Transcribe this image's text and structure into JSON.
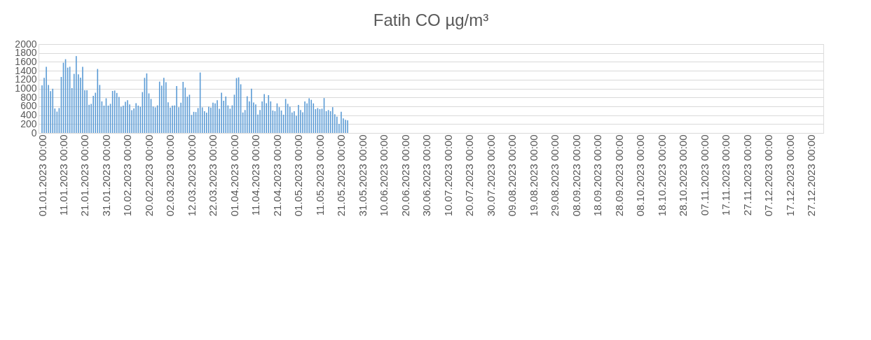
{
  "chart_data": {
    "type": "bar",
    "title": "Fatih CO µg/m³",
    "x": [
      "2023-01-01",
      "2023-01-02",
      "2023-01-03",
      "2023-01-04",
      "2023-01-05",
      "2023-01-06",
      "2023-01-07",
      "2023-01-08",
      "2023-01-09",
      "2023-01-10",
      "2023-01-11",
      "2023-01-12",
      "2023-01-13",
      "2023-01-14",
      "2023-01-15",
      "2023-01-16",
      "2023-01-17",
      "2023-01-18",
      "2023-01-19",
      "2023-01-20",
      "2023-01-21",
      "2023-01-22",
      "2023-01-23",
      "2023-01-24",
      "2023-01-25",
      "2023-01-26",
      "2023-01-27",
      "2023-01-28",
      "2023-01-29",
      "2023-01-30",
      "2023-01-31",
      "2023-02-01",
      "2023-02-02",
      "2023-02-03",
      "2023-02-04",
      "2023-02-05",
      "2023-02-06",
      "2023-02-07",
      "2023-02-08",
      "2023-02-09",
      "2023-02-10",
      "2023-02-11",
      "2023-02-12",
      "2023-02-13",
      "2023-02-14",
      "2023-02-15",
      "2023-02-16",
      "2023-02-17",
      "2023-02-18",
      "2023-02-19",
      "2023-02-20",
      "2023-02-21",
      "2023-02-22",
      "2023-02-23",
      "2023-02-24",
      "2023-02-25",
      "2023-02-26",
      "2023-02-27",
      "2023-02-28",
      "2023-03-01",
      "2023-03-02",
      "2023-03-03",
      "2023-03-04",
      "2023-03-05",
      "2023-03-06",
      "2023-03-07",
      "2023-03-08",
      "2023-03-09",
      "2023-03-10",
      "2023-03-11",
      "2023-03-12",
      "2023-03-13",
      "2023-03-14",
      "2023-03-15",
      "2023-03-16",
      "2023-03-17",
      "2023-03-18",
      "2023-03-19",
      "2023-03-20",
      "2023-03-21",
      "2023-03-22",
      "2023-03-23",
      "2023-03-24",
      "2023-03-25",
      "2023-03-26",
      "2023-03-27",
      "2023-03-28",
      "2023-03-29",
      "2023-03-30",
      "2023-03-31",
      "2023-04-01",
      "2023-04-02",
      "2023-04-03",
      "2023-04-04",
      "2023-04-05",
      "2023-04-06",
      "2023-04-07",
      "2023-04-08",
      "2023-04-09",
      "2023-04-10",
      "2023-04-11",
      "2023-04-12",
      "2023-04-13",
      "2023-04-14",
      "2023-04-15",
      "2023-04-16",
      "2023-04-17",
      "2023-04-18",
      "2023-04-19",
      "2023-04-20",
      "2023-04-21",
      "2023-04-22",
      "2023-04-23",
      "2023-04-24",
      "2023-04-25",
      "2023-04-26",
      "2023-04-27",
      "2023-04-28",
      "2023-04-29",
      "2023-04-30",
      "2023-05-01",
      "2023-05-02",
      "2023-05-03",
      "2023-05-04",
      "2023-05-05",
      "2023-05-06",
      "2023-05-07",
      "2023-05-08",
      "2023-05-09",
      "2023-05-10",
      "2023-05-11",
      "2023-05-12",
      "2023-05-13",
      "2023-05-14",
      "2023-05-15",
      "2023-05-16",
      "2023-05-17",
      "2023-05-18",
      "2023-05-19",
      "2023-05-20",
      "2023-05-21",
      "2023-05-22",
      "2023-05-23",
      "2023-05-24"
    ],
    "values": [
      1070,
      1240,
      1490,
      1080,
      940,
      995,
      550,
      480,
      560,
      1260,
      1580,
      1660,
      1470,
      1490,
      1010,
      1330,
      1730,
      1320,
      1245,
      1490,
      960,
      960,
      635,
      655,
      835,
      905,
      1440,
      1080,
      710,
      615,
      780,
      615,
      655,
      945,
      955,
      900,
      810,
      590,
      615,
      700,
      735,
      640,
      510,
      550,
      670,
      615,
      590,
      920,
      1240,
      1340,
      890,
      765,
      595,
      575,
      620,
      1155,
      1065,
      1240,
      1140,
      690,
      570,
      615,
      620,
      1055,
      580,
      680,
      1150,
      1020,
      815,
      860,
      405,
      475,
      470,
      560,
      1360,
      575,
      490,
      455,
      590,
      570,
      680,
      665,
      735,
      545,
      905,
      725,
      820,
      620,
      545,
      620,
      860,
      1235,
      1250,
      1095,
      460,
      515,
      825,
      710,
      995,
      685,
      640,
      415,
      515,
      710,
      875,
      670,
      850,
      710,
      505,
      490,
      665,
      580,
      505,
      410,
      765,
      655,
      590,
      460,
      490,
      385,
      630,
      515,
      465,
      710,
      665,
      780,
      745,
      665,
      535,
      560,
      535,
      545,
      785,
      490,
      515,
      490,
      580,
      420,
      365,
      205,
      475,
      325,
      295,
      285
    ],
    "color": "#5b9bd5",
    "xlim": [
      "2023-01-01",
      "2023-12-31"
    ],
    "xticks": [
      {
        "value": "2023-01-01",
        "label": "01.01.2023 00:00"
      },
      {
        "value": "2023-01-11",
        "label": "11.01.2023 00:00"
      },
      {
        "value": "2023-01-21",
        "label": "21.01.2023 00:00"
      },
      {
        "value": "2023-01-31",
        "label": "31.01.2023 00:00"
      },
      {
        "value": "2023-02-10",
        "label": "10.02.2023 00:00"
      },
      {
        "value": "2023-02-20",
        "label": "20.02.2023 00:00"
      },
      {
        "value": "2023-03-02",
        "label": "02.03.2023 00:00"
      },
      {
        "value": "2023-03-12",
        "label": "12.03.2023 00:00"
      },
      {
        "value": "2023-03-22",
        "label": "22.03.2023 00:00"
      },
      {
        "value": "2023-04-01",
        "label": "01.04.2023 00:00"
      },
      {
        "value": "2023-04-11",
        "label": "11.04.2023 00:00"
      },
      {
        "value": "2023-04-21",
        "label": "21.04.2023 00:00"
      },
      {
        "value": "2023-05-01",
        "label": "01.05.2023 00:00"
      },
      {
        "value": "2023-05-11",
        "label": "11.05.2023 00:00"
      },
      {
        "value": "2023-05-21",
        "label": "21.05.2023 00:00"
      },
      {
        "value": "2023-05-31",
        "label": "31.05.2023 00:00"
      },
      {
        "value": "2023-06-10",
        "label": "10.06.2023 00:00"
      },
      {
        "value": "2023-06-20",
        "label": "20.06.2023 00:00"
      },
      {
        "value": "2023-06-30",
        "label": "30.06.2023 00:00"
      },
      {
        "value": "2023-07-10",
        "label": "10.07.2023 00:00"
      },
      {
        "value": "2023-07-20",
        "label": "20.07.2023 00:00"
      },
      {
        "value": "2023-07-30",
        "label": "30.07.2023 00:00"
      },
      {
        "value": "2023-08-09",
        "label": "09.08.2023 00:00"
      },
      {
        "value": "2023-08-19",
        "label": "19.08.2023 00:00"
      },
      {
        "value": "2023-08-29",
        "label": "29.08.2023 00:00"
      },
      {
        "value": "2023-09-08",
        "label": "08.09.2023 00:00"
      },
      {
        "value": "2023-09-18",
        "label": "18.09.2023 00:00"
      },
      {
        "value": "2023-09-28",
        "label": "28.09.2023 00:00"
      },
      {
        "value": "2023-10-08",
        "label": "08.10.2023 00:00"
      },
      {
        "value": "2023-10-18",
        "label": "18.10.2023 00:00"
      },
      {
        "value": "2023-10-28",
        "label": "28.10.2023 00:00"
      },
      {
        "value": "2023-11-07",
        "label": "07.11.2023 00:00"
      },
      {
        "value": "2023-11-17",
        "label": "17.11.2023 00:00"
      },
      {
        "value": "2023-11-27",
        "label": "27.11.2023 00:00"
      },
      {
        "value": "2023-12-07",
        "label": "07.12.2023 00:00"
      },
      {
        "value": "2023-12-17",
        "label": "17.12.2023 00:00"
      },
      {
        "value": "2023-12-27",
        "label": "27.12.2023 00:00"
      }
    ],
    "ylim": [
      0,
      2000
    ],
    "yticks": [
      0,
      200,
      400,
      600,
      800,
      1000,
      1200,
      1400,
      1600,
      1800,
      2000
    ],
    "grid": "y"
  }
}
